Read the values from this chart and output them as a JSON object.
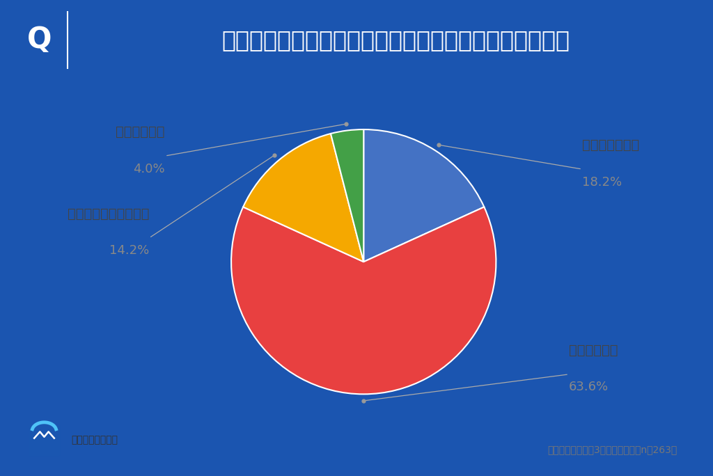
{
  "title": "志望校選びについて家族で話し合うことはありますか？",
  "question_label": "Q",
  "slices": [
    {
      "label": "頻繁に話し合う",
      "value": 18.2,
      "color": "#4472C4"
    },
    {
      "label": "時々話し合う",
      "value": 63.6,
      "color": "#E84040"
    },
    {
      "label": "ほとんど話し合わない",
      "value": 14.2,
      "color": "#F5A800"
    },
    {
      "label": "話し合わない",
      "value": 4.0,
      "color": "#43A047"
    }
  ],
  "header_bg": "#1B55B0",
  "chart_bg": "#FFFFFF",
  "outer_bg": "#1B55B0",
  "note_text": "現在子どもが中学3年生の保護者（n＝263）",
  "logo_text": "じゅけラボ予備校",
  "label_color_dark": "#444444",
  "label_color_light": "#888888",
  "title_fontsize": 24,
  "q_fontsize": 30,
  "label_fontsize": 14,
  "pct_fontsize": 13,
  "note_fontsize": 10
}
